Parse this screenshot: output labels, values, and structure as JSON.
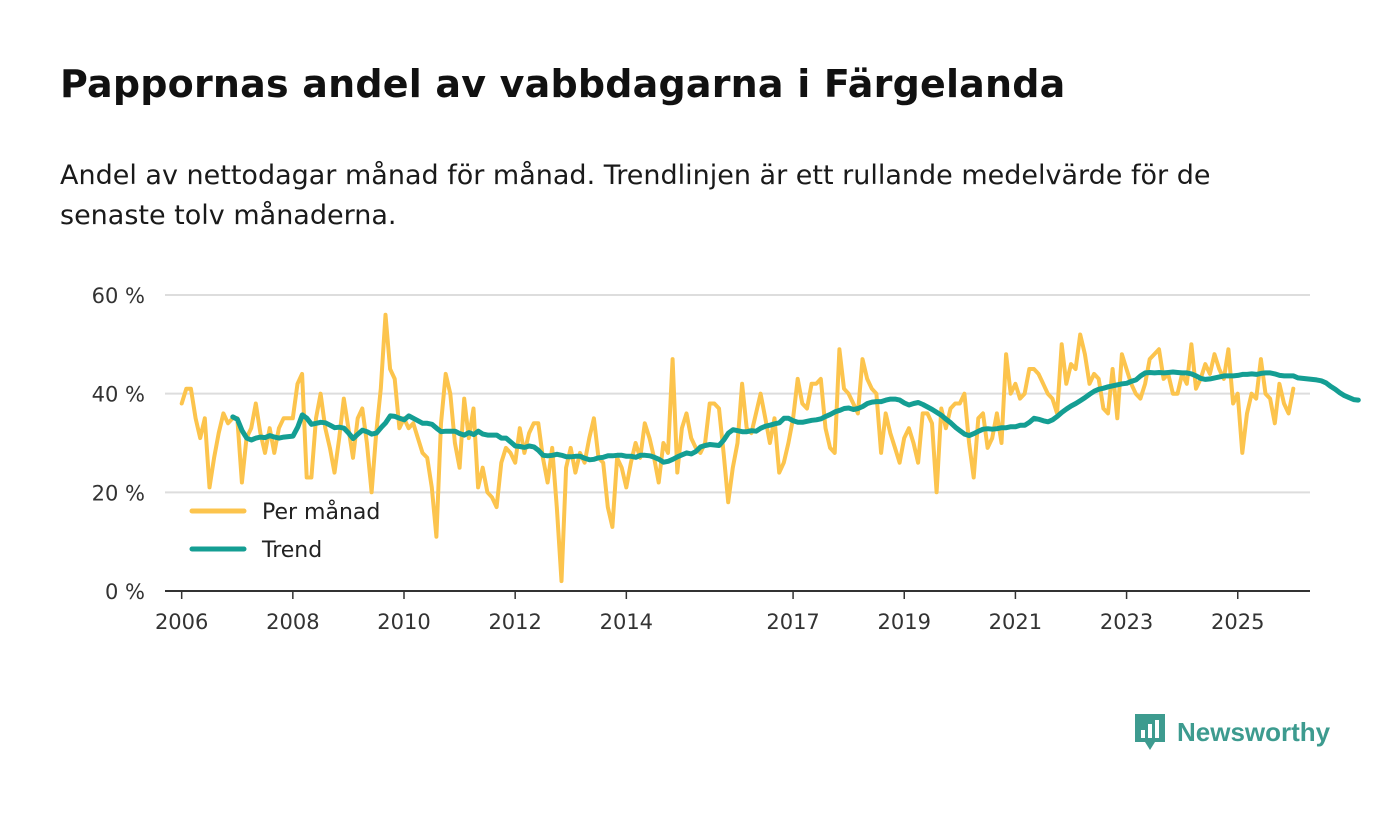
{
  "header": {
    "title": "Pappornas andel av vabbdagarna i Färgelanda",
    "subtitle": "Andel av nettodagar månad för månad. Trendlinjen är ett rullande medelvärde för de senaste tolv månaderna."
  },
  "brand": {
    "name": "Newsworthy",
    "color": "#3d9b8f"
  },
  "colors": {
    "monthly": "#fcc44d",
    "trend": "#149e93",
    "grid": "#dddddd",
    "axis": "#333333"
  },
  "chart_data": {
    "type": "line",
    "title": "Pappornas andel av vabbdagarna i Färgelanda",
    "xlabel": "",
    "ylabel": "",
    "xlim": [
      2005.7,
      2026.3
    ],
    "ylim": [
      0,
      60
    ],
    "x_ticks": [
      2006,
      2008,
      2010,
      2012,
      2014,
      2017,
      2019,
      2021,
      2023,
      2025
    ],
    "y_ticks": [
      0,
      20,
      40,
      60
    ],
    "y_tick_labels": [
      "0 %",
      "20 %",
      "40 %",
      "60 %"
    ],
    "grid": true,
    "legend": {
      "position": "bottom-left",
      "entries": [
        "Per månad",
        "Trend"
      ]
    },
    "series": [
      {
        "name": "Per månad",
        "color": "#fcc44d",
        "start": 2006.0,
        "step": 0.08333,
        "values": [
          38,
          41,
          41,
          35,
          31,
          35,
          21,
          27,
          32,
          36,
          34,
          35,
          35,
          22,
          31,
          33,
          38,
          32,
          28,
          33,
          28,
          33,
          35,
          35,
          35,
          42,
          44,
          23,
          23,
          35,
          40,
          33,
          29,
          24,
          31,
          39,
          33,
          27,
          35,
          37,
          30,
          20,
          32,
          41,
          56,
          45,
          43,
          33,
          35,
          33,
          34,
          31,
          28,
          27,
          21,
          11,
          34,
          44,
          40,
          30,
          25,
          39,
          31,
          37,
          21,
          25,
          20,
          19,
          17,
          26,
          29,
          28,
          26,
          33,
          28,
          32,
          34,
          34,
          27,
          22,
          29,
          17,
          2,
          25,
          29,
          24,
          28,
          26,
          31,
          35,
          27,
          26,
          17,
          13,
          27,
          25,
          21,
          26,
          30,
          27,
          34,
          31,
          27,
          22,
          30,
          28,
          47,
          24,
          33,
          36,
          31,
          29,
          28,
          30,
          38,
          38,
          37,
          28,
          18,
          25,
          30,
          42,
          33,
          32,
          36,
          40,
          35,
          30,
          35,
          24,
          26,
          30,
          35,
          43,
          38,
          37,
          42,
          42,
          43,
          33,
          29,
          28,
          49,
          41,
          40,
          38,
          36,
          47,
          43,
          41,
          40,
          28,
          36,
          32,
          29,
          26,
          31,
          33,
          30,
          26,
          36,
          36,
          34,
          20,
          37,
          33,
          37,
          38,
          38,
          40,
          30,
          23,
          35,
          36,
          29,
          31,
          36,
          30,
          48,
          40,
          42,
          39,
          40,
          45,
          45,
          44,
          42,
          40,
          39,
          36,
          50,
          42,
          46,
          45,
          52,
          48,
          42,
          44,
          43,
          37,
          36,
          45,
          35,
          48,
          45,
          42,
          40,
          39,
          42,
          47,
          48,
          49,
          43,
          44,
          40,
          40,
          44,
          42,
          50,
          41,
          43,
          46,
          44,
          48,
          45,
          43,
          49,
          38,
          40,
          28,
          36,
          40,
          39,
          47,
          40,
          39,
          34,
          42,
          38,
          36,
          41
        ]
      },
      {
        "name": "Trend",
        "color": "#149e93",
        "start": 2006.92,
        "step": 0.08333,
        "values": [
          35.3,
          34.8,
          32.5,
          31.0,
          30.6,
          31.0,
          31.2,
          31.1,
          31.5,
          31.2,
          31.0,
          31.2,
          31.3,
          31.4,
          33.2,
          35.7,
          35.0,
          33.8,
          34.0,
          34.2,
          34.1,
          33.6,
          33.1,
          33.2,
          33.0,
          32.0,
          30.9,
          31.8,
          32.6,
          32.3,
          31.8,
          32.0,
          33.1,
          34.1,
          35.5,
          35.4,
          35.0,
          34.7,
          35.5,
          35.0,
          34.5,
          34.0,
          34.0,
          33.8,
          33.0,
          32.3,
          32.4,
          32.4,
          32.4,
          31.9,
          31.6,
          32.1,
          31.7,
          32.4,
          31.8,
          31.6,
          31.6,
          31.6,
          31.0,
          31.0,
          30.2,
          29.4,
          29.3,
          29.1,
          29.4,
          29.2,
          28.5,
          27.5,
          27.4,
          27.5,
          27.7,
          27.5,
          27.2,
          27.2,
          27.3,
          27.3,
          26.9,
          26.6,
          26.7,
          27.0,
          27.1,
          27.4,
          27.4,
          27.5,
          27.5,
          27.3,
          27.3,
          27.1,
          27.5,
          27.5,
          27.4,
          27.1,
          26.7,
          26.1,
          26.3,
          26.7,
          27.2,
          27.6,
          28.0,
          27.8,
          28.3,
          29.2,
          29.5,
          29.7,
          29.6,
          29.5,
          30.6,
          32.0,
          32.7,
          32.5,
          32.3,
          32.3,
          32.5,
          32.4,
          33.0,
          33.4,
          33.6,
          33.9,
          34.1,
          35.0,
          35.0,
          34.5,
          34.2,
          34.2,
          34.4,
          34.6,
          34.7,
          34.9,
          35.4,
          35.8,
          36.3,
          36.6,
          37.0,
          37.1,
          36.8,
          37.0,
          37.4,
          38.0,
          38.3,
          38.4,
          38.4,
          38.7,
          38.9,
          38.9,
          38.7,
          38.1,
          37.7,
          38.0,
          38.2,
          37.8,
          37.3,
          36.8,
          36.2,
          35.6,
          34.8,
          34.1,
          33.2,
          32.5,
          31.8,
          31.5,
          31.9,
          32.4,
          32.8,
          32.9,
          32.8,
          32.9,
          33.1,
          33.1,
          33.3,
          33.3,
          33.6,
          33.6,
          34.2,
          35.0,
          34.8,
          34.5,
          34.3,
          34.7,
          35.4,
          36.2,
          36.9,
          37.5,
          38.0,
          38.6,
          39.2,
          39.9,
          40.5,
          40.9,
          41.1,
          41.4,
          41.6,
          41.8,
          42.0,
          42.1,
          42.5,
          42.8,
          43.6,
          44.2,
          44.3,
          44.2,
          44.3,
          44.2,
          44.3,
          44.4,
          44.3,
          44.2,
          44.2,
          44.0,
          43.6,
          43.1,
          42.9,
          43.0,
          43.2,
          43.4,
          43.6,
          43.6,
          43.6,
          43.7,
          43.9,
          43.9,
          44.0,
          43.9,
          44.1,
          44.2,
          44.2,
          44.0,
          43.7,
          43.6,
          43.6,
          43.6,
          43.2,
          43.1,
          43.0,
          42.9,
          42.8,
          42.6,
          42.2,
          41.5,
          40.9,
          40.2,
          39.6,
          39.2,
          38.8,
          38.7
        ]
      }
    ]
  }
}
